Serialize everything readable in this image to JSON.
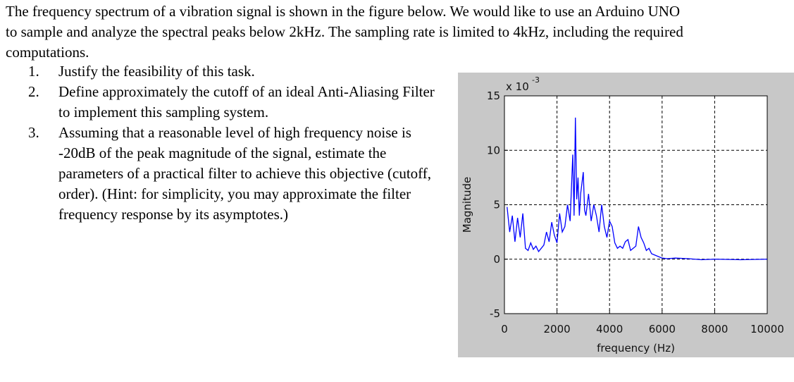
{
  "intro": "The frequency spectrum of a vibration signal is shown in the figure below. We would like to use an Arduino UNO to sample and analyze the spectral peaks below 2kHz. The sampling rate is limited to 4kHz, including the required computations.",
  "tasks": [
    {
      "number": "1.",
      "text": "Justify the feasibility of this task."
    },
    {
      "number": "2.",
      "text": "Define approximately the cutoff of an ideal Anti-Aliasing Filter to implement this sampling system."
    },
    {
      "number": "3.",
      "text": "Assuming that a reasonable level of high frequency noise is -20dB of the peak magnitude of the signal, estimate the parameters of a practical filter to achieve this objective (cutoff, order). (Hint: for simplicity, you may approximate the filter frequency response by its asymptotes.)"
    }
  ],
  "chart_data": {
    "type": "line",
    "xlabel": "frequency (Hz)",
    "ylabel": "Magnitude",
    "exponent_base": "x 10",
    "exponent": "-3",
    "color": "#0000ff",
    "grid": true,
    "xlim": [
      0,
      10000
    ],
    "xticks": [
      0,
      2000,
      4000,
      6000,
      8000,
      10000
    ],
    "ylim": [
      -5,
      15
    ],
    "yticks": [
      -5,
      0,
      5,
      10,
      15
    ],
    "x": [
      100,
      200,
      300,
      400,
      500,
      600,
      700,
      800,
      900,
      1000,
      1100,
      1200,
      1300,
      1400,
      1500,
      1600,
      1700,
      1800,
      1900,
      2000,
      2100,
      2200,
      2300,
      2400,
      2500,
      2600,
      2650,
      2700,
      2750,
      2800,
      2850,
      2900,
      3000,
      3050,
      3100,
      3200,
      3300,
      3400,
      3500,
      3600,
      3700,
      3800,
      3900,
      4000,
      4100,
      4200,
      4300,
      4400,
      4500,
      4600,
      4700,
      4800,
      4900,
      5000,
      5100,
      5200,
      5300,
      5400,
      5500,
      5600,
      5800,
      6000,
      6200,
      6500,
      7000,
      7500,
      8000,
      9000,
      10000
    ],
    "values": [
      4.8,
      2.5,
      4.0,
      1.6,
      3.8,
      2.0,
      4.2,
      1.0,
      0.8,
      1.5,
      0.9,
      1.2,
      0.7,
      1.0,
      1.3,
      2.5,
      1.6,
      3.4,
      2.2,
      1.5,
      4.2,
      2.5,
      3.0,
      5.0,
      3.5,
      9.6,
      4.0,
      13.0,
      5.5,
      7.5,
      4.0,
      6.0,
      8.0,
      4.5,
      4.0,
      6.0,
      3.5,
      5.0,
      4.0,
      2.5,
      5.0,
      3.0,
      2.0,
      3.5,
      3.0,
      1.5,
      1.0,
      1.2,
      1.0,
      1.6,
      1.8,
      0.8,
      1.0,
      1.2,
      3.0,
      2.0,
      1.5,
      0.8,
      1.0,
      0.5,
      0.3,
      0.1,
      0.05,
      0.1,
      0.05,
      -0.05,
      0.0,
      -0.05,
      0.0
    ]
  }
}
